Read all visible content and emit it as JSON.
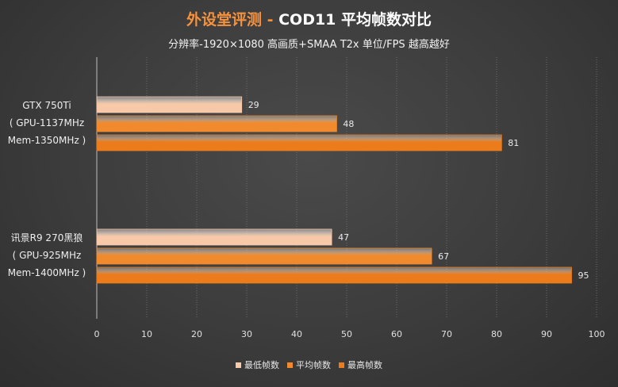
{
  "header": {
    "brand": "外设堂评测",
    "separator": " - ",
    "title": "COD11 平均帧数对比",
    "subtitle": "分辨率-1920×1080  高画质+SMAA  T2x 单位/FPS   越高越好"
  },
  "colors": {
    "min": "#f7c9a9",
    "avg": "#f08a2c",
    "max": "#ec7c1b",
    "brand": "#f5923e"
  },
  "chart_data": {
    "type": "bar",
    "orientation": "horizontal",
    "title": "COD11 平均帧数对比",
    "subtitle": "分辨率-1920×1080  高画质+SMAA  T2x 单位/FPS   越高越好",
    "categories": [
      [
        "GTX 750Ti",
        "( GPU-1137MHz",
        "Mem-1350MHz )"
      ],
      [
        "讯景R9 270黑狼",
        "( GPU-925MHz",
        "Mem-1400MHz )"
      ]
    ],
    "series": [
      {
        "name": "最低帧数",
        "values": [
          29,
          47
        ]
      },
      {
        "name": "平均帧数",
        "values": [
          48,
          67
        ]
      },
      {
        "name": "最高帧数",
        "values": [
          81,
          95
        ]
      }
    ],
    "xlim": [
      0,
      100
    ],
    "xticks": [
      0,
      10,
      20,
      30,
      40,
      50,
      60,
      70,
      80,
      90,
      100
    ],
    "grid": true,
    "legend": "bottom"
  }
}
